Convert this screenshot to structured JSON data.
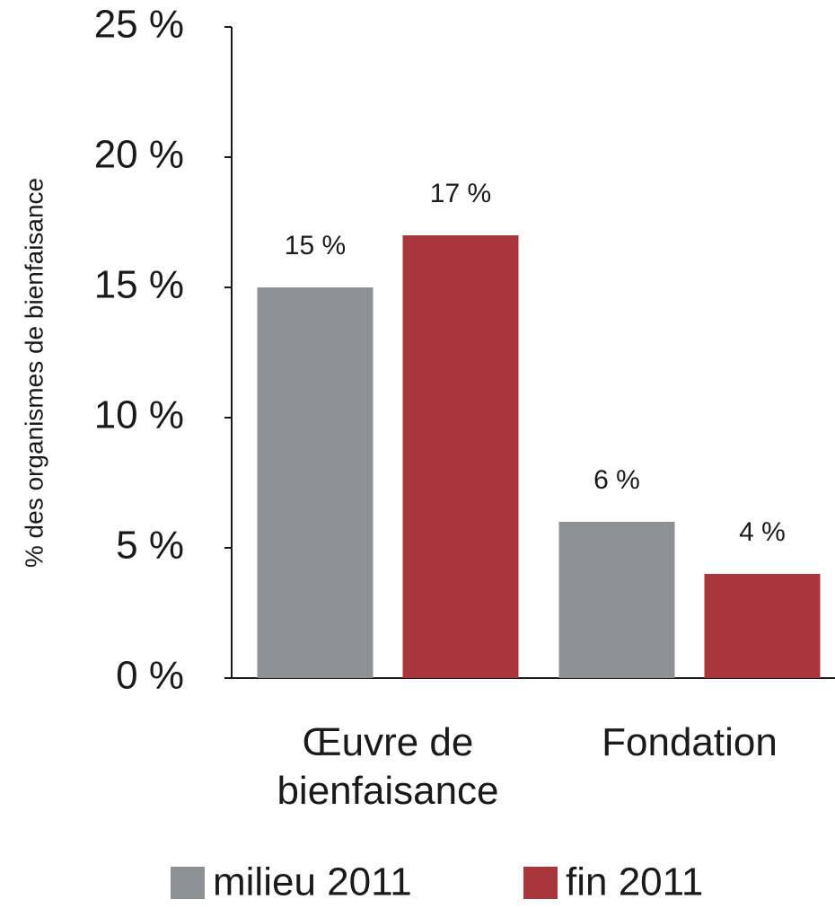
{
  "chart_data": {
    "type": "bar",
    "y_label": "% des organismes de bienfaisance",
    "categories": [
      "Œuvre de bienfaisance",
      "Fondation"
    ],
    "series": [
      {
        "name": "milieu 2011",
        "color": "#8e9093",
        "values": [
          15,
          6
        ],
        "value_labels": [
          "15 %",
          "6 %"
        ]
      },
      {
        "name": "fin 2011",
        "color": "#a8363b",
        "values": [
          17,
          4
        ],
        "value_labels": [
          "17 %",
          "4 %"
        ]
      }
    ],
    "ylim": [
      0,
      25
    ],
    "yticks": [
      {
        "value": 0,
        "label": "0 %"
      },
      {
        "value": 5,
        "label": "5 %"
      },
      {
        "value": 10,
        "label": "10 %"
      },
      {
        "value": 15,
        "label": "15 %"
      },
      {
        "value": 20,
        "label": "20 %"
      },
      {
        "value": 25,
        "label": "25 %"
      }
    ],
    "legend": "bottom"
  }
}
